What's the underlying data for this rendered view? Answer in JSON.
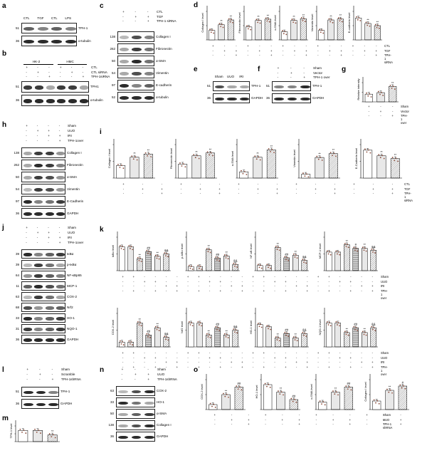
{
  "panels": {
    "a": {
      "letter": "a",
      "top_labels": [
        "CTL",
        "TGF",
        "CTL",
        "LPS"
      ],
      "blots": [
        "TPH-1",
        "α-tubulin"
      ],
      "mw": [
        "51",
        "36"
      ]
    },
    "b": {
      "letter": "b",
      "groups": [
        "HK-2",
        "HMC"
      ],
      "conds": [
        {
          "label": "CTL",
          "sym": [
            "+",
            "-",
            "-",
            "+",
            "-",
            "-"
          ]
        },
        {
          "label": "CTL siRNA",
          "sym": [
            "-",
            "+",
            "-",
            "-",
            "+",
            "-"
          ]
        },
        {
          "label": "TPH-1siRNA",
          "sym": [
            "-",
            "-",
            "+",
            "-",
            "-",
            "+"
          ]
        }
      ],
      "blots": [
        "TPH1",
        "α-tubulin"
      ],
      "mw": [
        "51",
        "36"
      ]
    },
    "c": {
      "letter": "c",
      "conds": [
        {
          "label": "CTL",
          "sym": [
            "+",
            "-",
            "-"
          ]
        },
        {
          "label": "TGF",
          "sym": [
            "-",
            "+",
            "+"
          ]
        },
        {
          "label": "TPH-1 siRNA",
          "sym": [
            "-",
            "-",
            "+"
          ]
        }
      ],
      "blots": [
        "Collagen I",
        "Fibronectin",
        "α-SMA",
        "Vimentin",
        "E-cadherin",
        "α-tubulin"
      ],
      "mw": [
        "138",
        "262",
        "50",
        "54",
        "97",
        "52"
      ]
    },
    "e": {
      "letter": "e",
      "top_labels": [
        "Sham",
        "UUO",
        "IRI"
      ],
      "blots": [
        "TPH-1",
        "GAPDH"
      ],
      "mw": [
        "51",
        "36"
      ]
    },
    "f": {
      "letter": "f",
      "conds": [
        {
          "label": "Sham",
          "sym": [
            "+",
            "-",
            "-"
          ]
        },
        {
          "label": "Vector",
          "sym": [
            "-",
            "+",
            "-"
          ]
        },
        {
          "label": "TPH-1 over",
          "sym": [
            "-",
            "-",
            "+"
          ]
        }
      ],
      "blots": [
        "TPH-1",
        "GAPDH"
      ],
      "mw": [
        "51",
        "36"
      ]
    },
    "h": {
      "letter": "h",
      "conds": [
        {
          "label": "Sham",
          "sym": [
            "+",
            "-",
            "-",
            "-"
          ]
        },
        {
          "label": "UUO",
          "sym": [
            "-",
            "+",
            "+",
            "-"
          ]
        },
        {
          "label": "IRI",
          "sym": [
            "-",
            "-",
            "+",
            "+"
          ]
        },
        {
          "label": "TPH-1over",
          "sym": [
            "-",
            "-",
            "-",
            "+"
          ]
        }
      ],
      "blots": [
        "Collagen I",
        "Fibronectin",
        "α-SMA",
        "Vimentin",
        "E-Cadherin",
        "GAPDH"
      ],
      "mw": [
        "138",
        "262",
        "50",
        "54",
        "97",
        "36"
      ]
    },
    "j": {
      "letter": "j",
      "conds": [
        {
          "label": "Sham",
          "sym": [
            "+",
            "-",
            "-",
            "-"
          ]
        },
        {
          "label": "UUO",
          "sym": [
            "-",
            "+",
            "+",
            "-"
          ]
        },
        {
          "label": "IRI",
          "sym": [
            "-",
            "-",
            "+",
            "+"
          ]
        },
        {
          "label": "TPH-1over",
          "sym": [
            "-",
            "-",
            "-",
            "+"
          ]
        }
      ],
      "blots": [
        "IκBα",
        "p-IκBα",
        "NF-κBp65",
        "MCP-1",
        "COX-2",
        "Nrf2",
        "HO-1",
        "NQO-1",
        "GAPDH"
      ],
      "mw": [
        "39",
        "39",
        "64",
        "11",
        "63",
        "68",
        "33",
        "31",
        "36"
      ]
    },
    "l": {
      "letter": "l",
      "conds": [
        {
          "label": "Sham",
          "sym": [
            "+",
            "-",
            "-"
          ]
        },
        {
          "label": "Scramble",
          "sym": [
            "-",
            "+",
            "-"
          ]
        },
        {
          "label": "TPH-1shRNA",
          "sym": [
            "-",
            "-",
            "+"
          ]
        }
      ],
      "blots": [
        "TPH-1",
        "GAPDH"
      ],
      "mw": [
        "51",
        "36"
      ]
    },
    "n": {
      "letter": "n",
      "conds": [
        {
          "label": "Sham",
          "sym": [
            "+",
            "-",
            "-"
          ]
        },
        {
          "label": "UUO",
          "sym": [
            "-",
            "+",
            "+"
          ]
        },
        {
          "label": "TPH-1shRNA",
          "sym": [
            "-",
            "-",
            "+"
          ]
        }
      ],
      "blots": [
        "COX-2",
        "HO-1",
        "α-SMA",
        "Collagen I",
        "GAPDH"
      ],
      "mw": [
        "63",
        "33",
        "50",
        "138",
        "36"
      ]
    },
    "d": {
      "letter": "d"
    },
    "g": {
      "letter": "g"
    },
    "i": {
      "letter": "i"
    },
    "k": {
      "letter": "k"
    },
    "m": {
      "letter": "m"
    },
    "o": {
      "letter": "o"
    }
  },
  "chart_data": [
    {
      "panel": "d",
      "type": "bar",
      "ylabel": "Collagen I level",
      "values": [
        1.0,
        1.6,
        2.1
      ],
      "ylim": [
        0,
        3
      ],
      "stars": [
        "",
        "**",
        "**"
      ]
    },
    {
      "panel": "d",
      "type": "bar",
      "ylabel": "Fibronectin level",
      "values": [
        1.0,
        1.5,
        1.6
      ],
      "ylim": [
        0,
        2.2
      ],
      "stars": [
        "",
        "**",
        "**"
      ]
    },
    {
      "panel": "d",
      "type": "bar",
      "ylabel": "α-SMA level",
      "values": [
        1.0,
        2.4,
        2.6
      ],
      "ylim": [
        0,
        3.5
      ],
      "stars": [
        "",
        "**",
        "**"
      ]
    },
    {
      "panel": "d",
      "type": "bar",
      "ylabel": "Vimentin level",
      "values": [
        1.0,
        2.1,
        2.2
      ],
      "ylim": [
        0,
        3
      ],
      "stars": [
        "",
        "**",
        "**"
      ]
    },
    {
      "panel": "d",
      "type": "bar",
      "ylabel": "E-cadherin level",
      "values": [
        1.0,
        0.75,
        0.65
      ],
      "ylim": [
        0,
        1.3
      ],
      "stars": [
        "",
        "**",
        "**"
      ]
    },
    {
      "panel": "g",
      "type": "bar",
      "ylabel": "Relative intensity",
      "values": [
        1.0,
        1.2,
        2.0
      ],
      "ylim": [
        0,
        2.5
      ],
      "stars": [
        "",
        "",
        "**"
      ]
    },
    {
      "panel": "i",
      "type": "bar",
      "ylabel": "Collagen I level",
      "values": [
        0.6,
        1.0,
        1.15
      ],
      "ylim": [
        0,
        1.6
      ],
      "stars": [
        "",
        "**",
        "**"
      ]
    },
    {
      "panel": "i",
      "type": "bar",
      "ylabel": "Fibronectin level",
      "values": [
        0.5,
        0.8,
        0.9
      ],
      "ylim": [
        0,
        1.2
      ],
      "stars": [
        "",
        "**",
        "**"
      ]
    },
    {
      "panel": "i",
      "type": "bar",
      "ylabel": "α-SMA level",
      "values": [
        0.3,
        1.0,
        1.35
      ],
      "ylim": [
        0,
        1.6
      ],
      "stars": [
        "",
        "**",
        "**"
      ]
    },
    {
      "panel": "i",
      "type": "bar",
      "ylabel": "Vimentin level",
      "values": [
        0.15,
        0.8,
        0.95
      ],
      "ylim": [
        0,
        1.3
      ],
      "stars": [
        "",
        "**",
        "**"
      ]
    },
    {
      "panel": "i",
      "type": "bar",
      "ylabel": "E-Cadherin level",
      "values": [
        1.0,
        0.8,
        0.7
      ],
      "ylim": [
        0,
        1.2
      ],
      "stars": [
        "",
        "**",
        "**"
      ]
    },
    {
      "panel": "k",
      "type": "bar",
      "ylabel": "IκBα level",
      "values": [
        1.0,
        1.0,
        0.5,
        0.8,
        0.6,
        0.7
      ],
      "ylim": [
        0,
        1.4
      ],
      "stars": [
        "",
        "",
        "**",
        "##",
        "**",
        "&&"
      ]
    },
    {
      "panel": "k",
      "type": "bar",
      "ylabel": "p-IκBα level",
      "values": [
        0.2,
        0.2,
        1.0,
        0.6,
        0.7,
        0.3
      ],
      "ylim": [
        0,
        1.6
      ],
      "stars": [
        "",
        "",
        "**",
        "##",
        "**",
        "&&"
      ]
    },
    {
      "panel": "k",
      "type": "bar",
      "ylabel": "NF-κB level",
      "values": [
        0.2,
        0.2,
        0.9,
        0.5,
        0.6,
        0.4
      ],
      "ylim": [
        0,
        1.3
      ],
      "stars": [
        "",
        "",
        "**",
        "##",
        "**",
        "&&"
      ]
    },
    {
      "panel": "k",
      "type": "bar",
      "ylabel": "MCP-1 level",
      "values": [
        1.0,
        1.0,
        1.4,
        1.2,
        1.2,
        1.1
      ],
      "ylim": [
        0,
        1.8
      ],
      "stars": [
        "",
        "",
        "**",
        "#",
        "**",
        "&&"
      ]
    },
    {
      "panel": "k",
      "type": "bar",
      "ylabel": "COX-2 level",
      "values": [
        0.2,
        0.2,
        1.0,
        0.5,
        0.8,
        0.4
      ],
      "ylim": [
        0,
        1.4
      ],
      "stars": [
        "",
        "",
        "**",
        "##",
        "**",
        "&&"
      ]
    },
    {
      "panel": "k",
      "type": "bar",
      "ylabel": "Nrf2 level",
      "values": [
        1.0,
        1.0,
        0.5,
        0.8,
        0.5,
        0.7
      ],
      "ylim": [
        0,
        1.4
      ],
      "stars": [
        "",
        "",
        "**",
        "##",
        "**",
        "&&"
      ]
    },
    {
      "panel": "k",
      "type": "bar",
      "ylabel": "HO-1 level",
      "values": [
        1.0,
        0.9,
        0.4,
        0.6,
        0.4,
        0.6
      ],
      "ylim": [
        0,
        1.5
      ],
      "stars": [
        "",
        "",
        "**",
        "##",
        "**",
        "&&"
      ]
    },
    {
      "panel": "k",
      "type": "bar",
      "ylabel": "NQO-1 level",
      "values": [
        1.0,
        1.0,
        0.6,
        0.8,
        0.6,
        0.8
      ],
      "ylim": [
        0,
        1.4
      ],
      "stars": [
        "",
        "",
        "**",
        "##",
        "**",
        "&&"
      ]
    },
    {
      "panel": "m",
      "type": "bar",
      "ylabel": "TPH-1 level",
      "values": [
        1.0,
        1.0,
        0.6
      ],
      "ylim": [
        0,
        1.4
      ],
      "stars": [
        "",
        "",
        "**"
      ]
    },
    {
      "panel": "o",
      "type": "bar",
      "ylabel": "COX-2 level",
      "values": [
        0.2,
        0.6,
        0.9
      ],
      "ylim": [
        0,
        1.2
      ],
      "stars": [
        "",
        "**",
        "##"
      ]
    },
    {
      "panel": "o",
      "type": "bar",
      "ylabel": "HO-1 level",
      "values": [
        1.0,
        0.7,
        0.4
      ],
      "ylim": [
        0,
        1.2
      ],
      "stars": [
        "",
        "**",
        "##"
      ]
    },
    {
      "panel": "o",
      "type": "bar",
      "ylabel": "α-SMA level",
      "values": [
        0.3,
        0.7,
        0.9
      ],
      "ylim": [
        0,
        1.2
      ],
      "stars": [
        "",
        "**",
        "##"
      ]
    },
    {
      "panel": "o",
      "type": "bar",
      "ylabel": "Collagen I level",
      "values": [
        0.4,
        0.9,
        1.1
      ],
      "ylim": [
        0,
        1.4
      ],
      "stars": [
        "",
        "**",
        "#"
      ]
    }
  ],
  "legends": {
    "d": [
      {
        "label": "CTL",
        "sym": [
          "+",
          "-",
          "-"
        ]
      },
      {
        "label": "TGF",
        "sym": [
          "-",
          "+",
          "+"
        ]
      },
      {
        "label": "TPH-1 siRNA",
        "sym": [
          "-",
          "-",
          "+"
        ]
      }
    ],
    "g": [
      {
        "label": "Sham",
        "sym": [
          "+",
          "-",
          "-"
        ]
      },
      {
        "label": "Vector",
        "sym": [
          "-",
          "+",
          "-"
        ]
      },
      {
        "label": "TPH-1 over",
        "sym": [
          "-",
          "-",
          "+"
        ]
      }
    ],
    "i": [
      {
        "label": "CTL",
        "sym": [
          "+",
          "-",
          "-"
        ]
      },
      {
        "label": "TGF",
        "sym": [
          "-",
          "+",
          "+"
        ]
      },
      {
        "label": "TPH-1 siRNA",
        "sym": [
          "-",
          "-",
          "+"
        ]
      }
    ],
    "k": [
      {
        "label": "Sham",
        "sym": [
          "+",
          "+",
          "-",
          "-",
          "-",
          "-"
        ]
      },
      {
        "label": "UUO",
        "sym": [
          "-",
          "-",
          "+",
          "+",
          "-",
          "-"
        ]
      },
      {
        "label": "IRI",
        "sym": [
          "-",
          "-",
          "-",
          "-",
          "+",
          "+"
        ]
      },
      {
        "label": "TPH-1 over",
        "sym": [
          "-",
          "+",
          "-",
          "+",
          "-",
          "+"
        ]
      }
    ],
    "o": [
      {
        "label": "Sham",
        "sym": [
          "+",
          "-",
          "-"
        ]
      },
      {
        "label": "UUO",
        "sym": [
          "-",
          "+",
          "+"
        ]
      },
      {
        "label": "TPH-1 shRNA",
        "sym": [
          "-",
          "-",
          "+"
        ]
      }
    ]
  },
  "colors": {
    "ink": "#000000",
    "band": "#2a2a2a",
    "bar_fill": "#ffffff",
    "dot": "#8a4b3a"
  }
}
